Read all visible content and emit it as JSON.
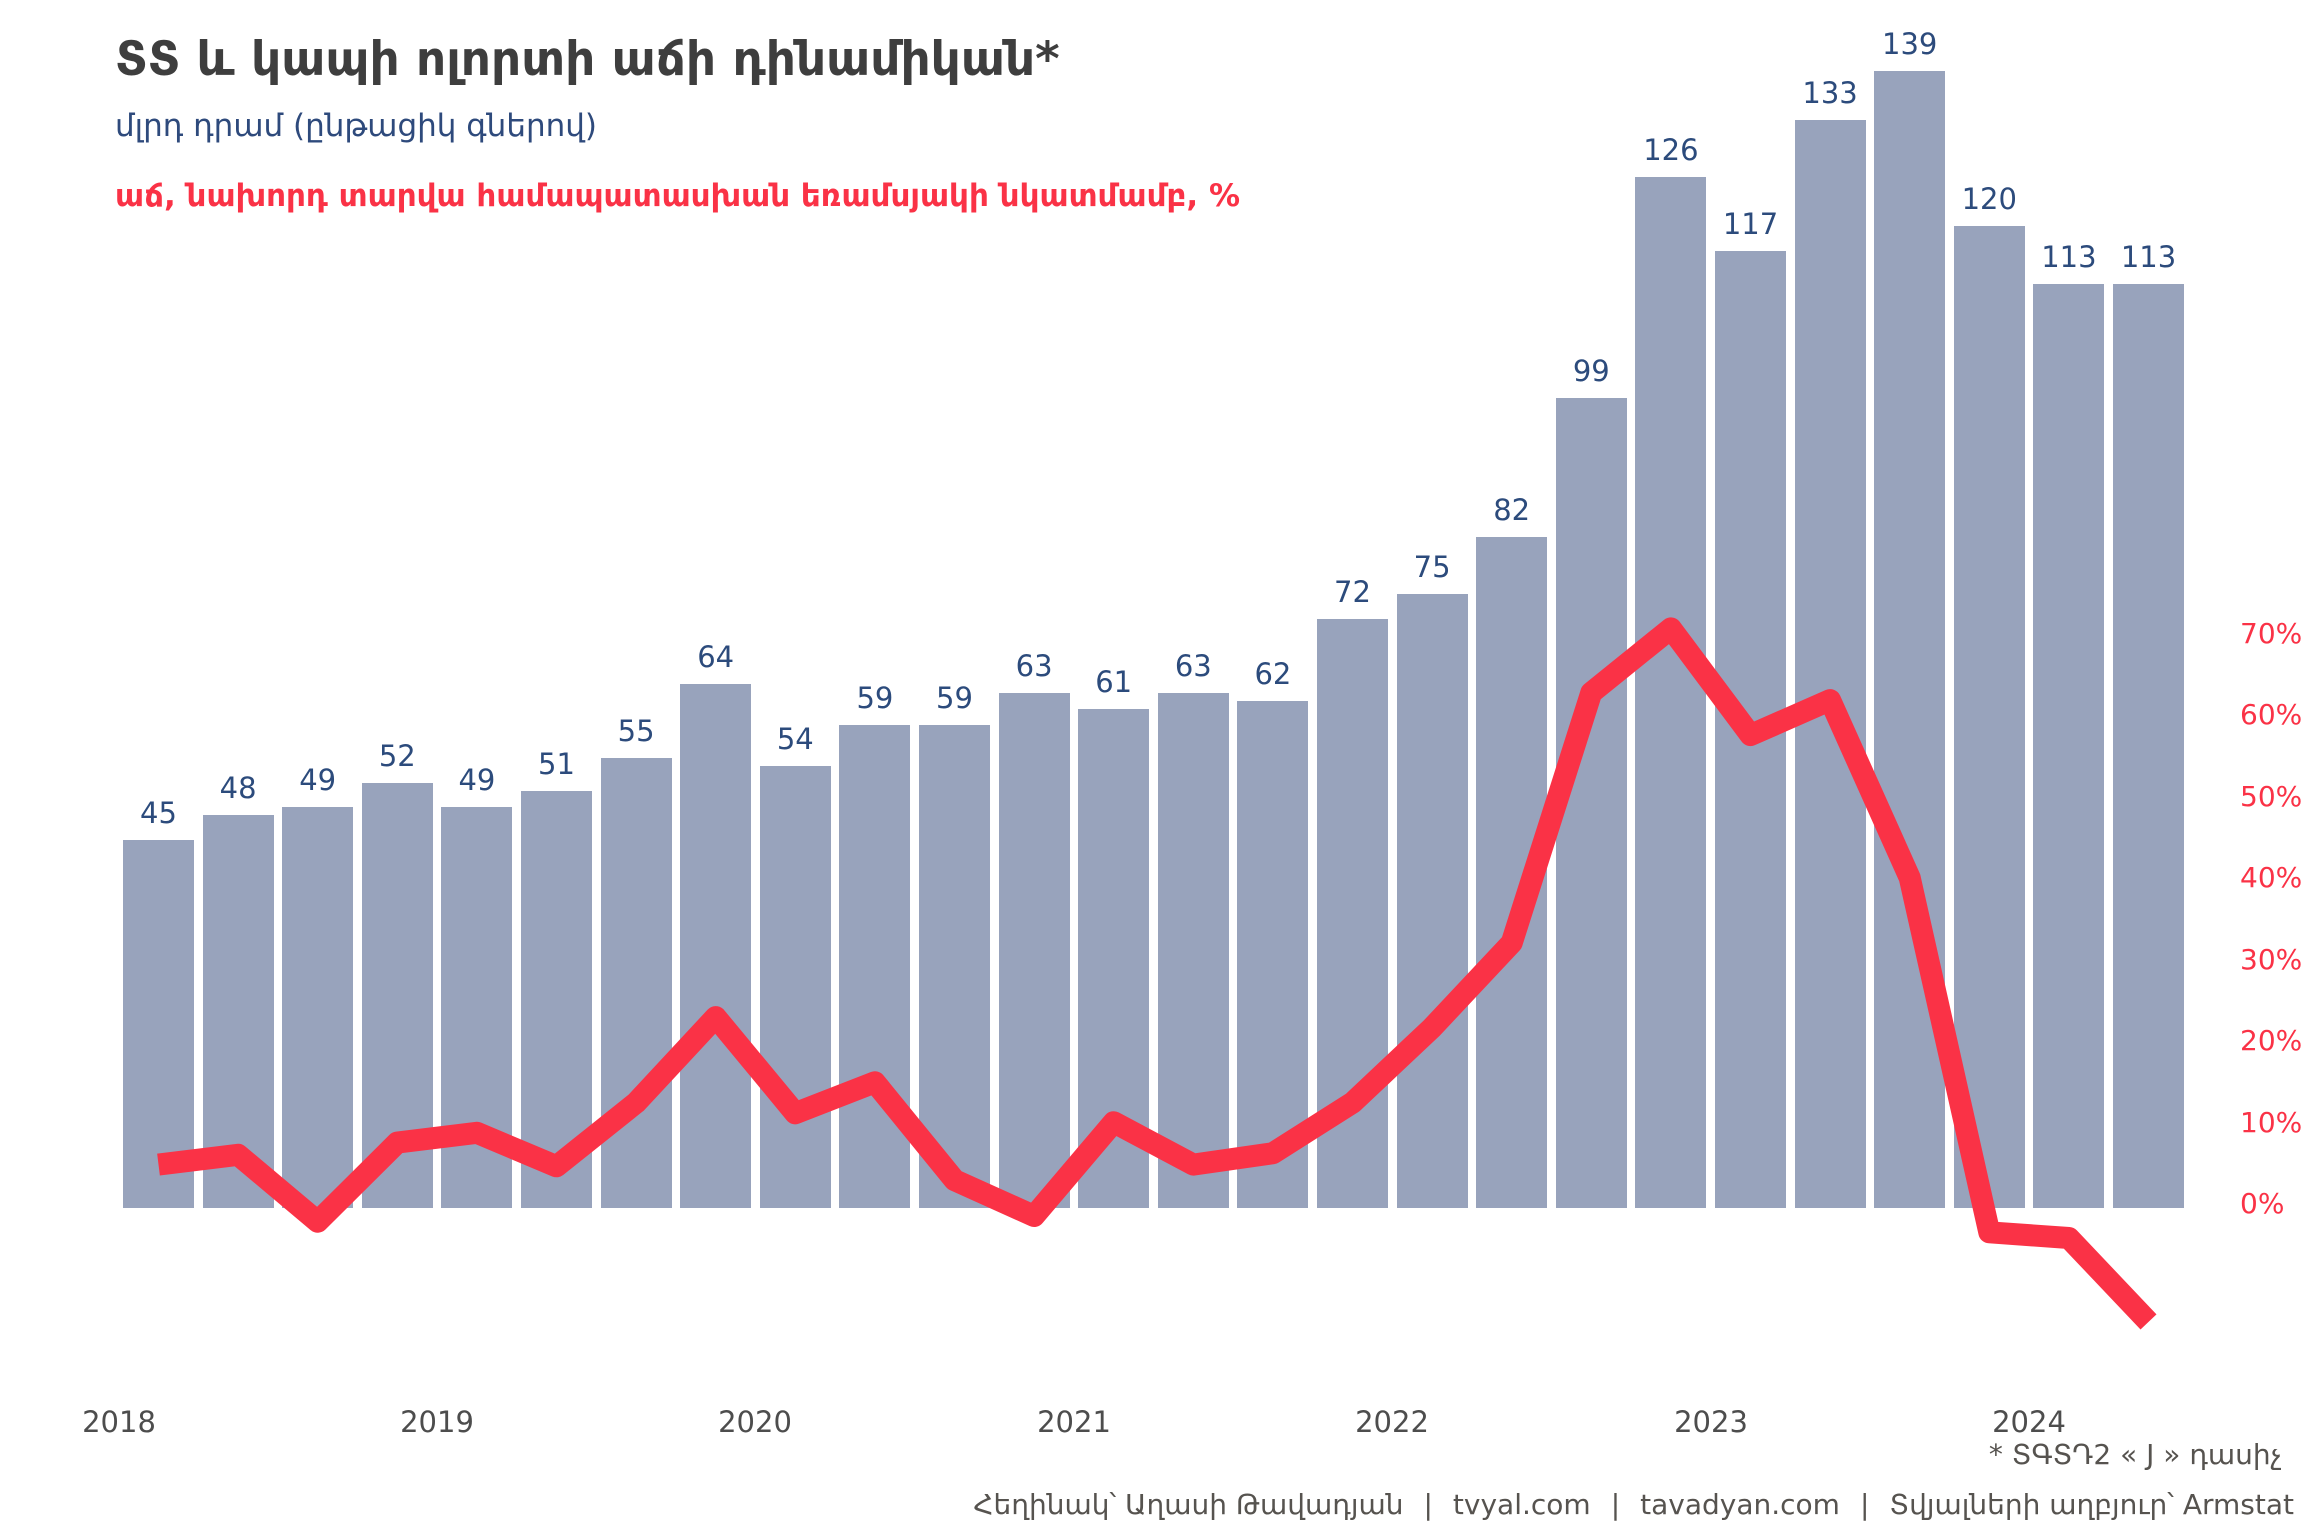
{
  "header": {
    "title": "ՏՏ և կապի ոլորտի աճի դինամիկան*",
    "subtitle": "մլրդ դրամ (ընթացիկ գներով)",
    "growth_caption": "աճ, նախորդ տարվա համապատասխան եռամսյակի նկատմամբ, %"
  },
  "footer": {
    "footnote": "* ՏԳՏԴ2 « J » դասիչ",
    "credits": {
      "author": "Հեղինակ՝ Աղասի Թավադյան",
      "site1": "tvyal.com",
      "site2": "tavadyan.com",
      "source": "Տվյալների աղբյուր՝ Armstat",
      "separator": "|"
    }
  },
  "colors": {
    "bar": "#98a3bc",
    "bar_label": "#2c4b7c",
    "line": "#fa3246",
    "axis_label": "#fa3246",
    "title": "#3e3e3e",
    "subtitle": "#2e4a7c",
    "year_label": "#4d4d4d",
    "footer_text": "#56534f"
  },
  "chart_data": {
    "type": "bar+line",
    "title": "ՏՏ և կապի ոլորտի աճի դինամիկան*",
    "bar_series_label": "մլրդ դրամ (ընթացիկ գներով)",
    "line_series_label": "աճ, նախորդ տարվա համապատասխան եռամսյակի նկատմամբ, %",
    "categories": [
      "2018Q1",
      "2018Q2",
      "2018Q3",
      "2018Q4",
      "2019Q1",
      "2019Q2",
      "2019Q3",
      "2019Q4",
      "2020Q1",
      "2020Q2",
      "2020Q3",
      "2020Q4",
      "2021Q1",
      "2021Q2",
      "2021Q3",
      "2021Q4",
      "2022Q1",
      "2022Q2",
      "2022Q3",
      "2022Q4",
      "2023Q1",
      "2023Q2",
      "2023Q3",
      "2023Q4",
      "2024Q1",
      "2024Q2"
    ],
    "bar_values": [
      45,
      48,
      49,
      52,
      49,
      51,
      55,
      64,
      54,
      59,
      59,
      63,
      61,
      63,
      62,
      72,
      75,
      82,
      99,
      126,
      117,
      133,
      139,
      120,
      113,
      113
    ],
    "line_values_pct": [
      5.2,
      6.4,
      -1.8,
      7.9,
      9.1,
      5.0,
      12.8,
      23.3,
      11.5,
      15.3,
      3.3,
      -1.1,
      10.4,
      5.2,
      6.6,
      12.8,
      22.0,
      32.4,
      63.1,
      71.0,
      57.9,
      62.2,
      40.4,
      -3.1,
      -3.8,
      -14.1
    ],
    "x_year_labels": [
      "2018",
      "2019",
      "2020",
      "2021",
      "2022",
      "2023",
      "2024"
    ],
    "right_axis": {
      "tick_labels": [
        "0%",
        "10%",
        "20%",
        "30%",
        "40%",
        "50%",
        "60%",
        "70%"
      ],
      "min": 0,
      "max": 70,
      "step": 10,
      "unit": "%",
      "side": "right"
    },
    "layout": {
      "grid": false,
      "legend": "none",
      "bar_labels_shown": true
    }
  }
}
